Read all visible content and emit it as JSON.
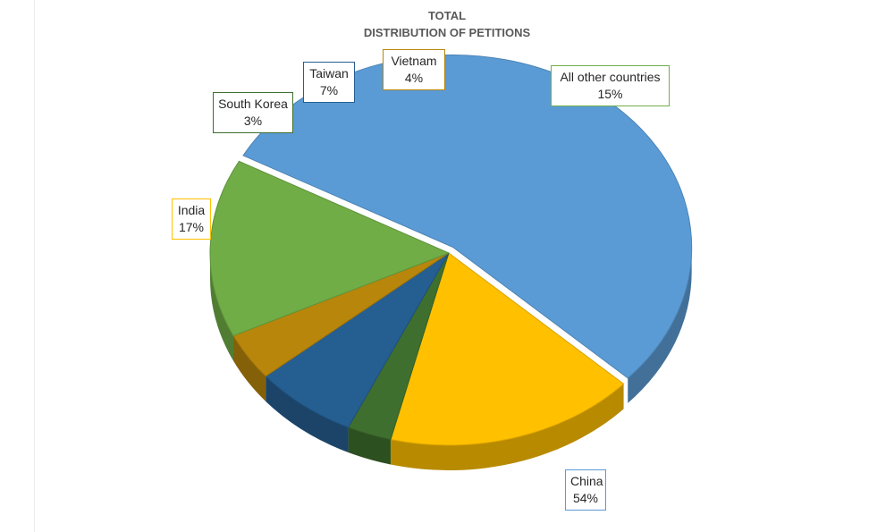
{
  "chart_data": {
    "type": "pie",
    "title_lines": [
      "TOTAL",
      "DISTRIBUTION OF PETITIONS"
    ],
    "slices": [
      {
        "label": "China",
        "value": 54,
        "value_label": "54%",
        "color": "#5b9bd5"
      },
      {
        "label": "India",
        "value": 17,
        "value_label": "17%",
        "color": "#ffc000"
      },
      {
        "label": "South Korea",
        "value": 3,
        "value_label": "3%",
        "color": "#3f6f2e"
      },
      {
        "label": "Taiwan",
        "value": 7,
        "value_label": "7%",
        "color": "#255e91"
      },
      {
        "label": "Vietnam",
        "value": 4,
        "value_label": "4%",
        "color": "#b8860b"
      },
      {
        "label": "All other countries",
        "value": 15,
        "value_label": "15%",
        "color": "#70ad47"
      }
    ],
    "style": "3d-exploded"
  }
}
